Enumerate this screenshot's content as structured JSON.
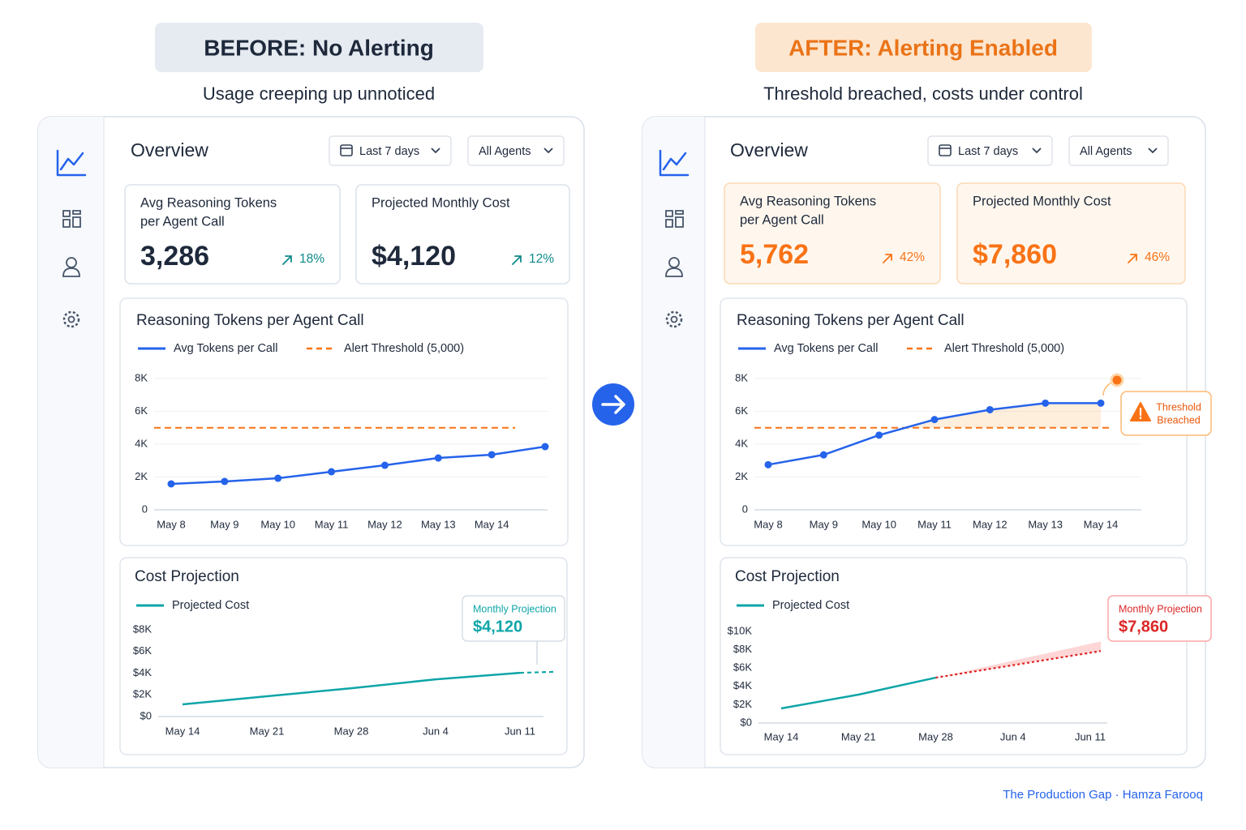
{
  "header": {
    "before": {
      "badge": "BEFORE: No Alerting",
      "subtitle": "Usage creeping up unnoticed"
    },
    "after": {
      "badge": "AFTER: Alerting Enabled",
      "subtitle": "Threshold breached, costs under control"
    }
  },
  "panels": [
    {
      "title": "Overview",
      "filters": [
        "Last 7 days",
        "All Agents"
      ],
      "stats": [
        {
          "label": [
            "Avg Reasoning Tokens",
            "per Agent Call"
          ],
          "value": "3,286",
          "change": "18%"
        },
        {
          "label": [
            "Projected Monthly Cost"
          ],
          "value": "$4,120",
          "change": "12%"
        }
      ]
    },
    {
      "title": "Overview",
      "filters": [
        "Last 7 days",
        "All Agents"
      ],
      "stats": [
        {
          "label": [
            "Avg Reasoning Tokens",
            "per Agent Call"
          ],
          "value": "5,762",
          "change": "42%"
        },
        {
          "label": [
            "Projected Monthly Cost"
          ],
          "value": "$7,860",
          "change": "46%"
        }
      ],
      "alert": [
        "Threshold",
        "Breached"
      ]
    }
  ],
  "chart_data": [
    {
      "type": "line",
      "title": "Reasoning Tokens per Agent Call",
      "categories": [
        "May 8",
        "May 9",
        "May 10",
        "May 11",
        "May 12",
        "May 13",
        "May 14",
        null
      ],
      "series": [
        {
          "name": "Avg Tokens per Call",
          "color": "#2563eb",
          "values": [
            1580,
            1730,
            1925,
            2320,
            2715,
            3160,
            3360,
            3850
          ]
        }
      ],
      "threshold": {
        "name": "Alert Threshold (5,000)",
        "value": 5000,
        "color": "#f97316"
      },
      "ylim": [
        0,
        8000
      ],
      "yticks": [
        0,
        {
          "value": 2000,
          "label": "2K"
        },
        {
          "value": 4000,
          "label": "4K"
        },
        {
          "value": 6000,
          "label": "6K"
        },
        {
          "value": 8000,
          "label": "8K"
        }
      ],
      "grid": true
    },
    {
      "type": "line",
      "title": "Reasoning Tokens per Agent Call",
      "categories": [
        "May 8",
        "May 9",
        "May 10",
        "May 11",
        "May 12",
        "May 13",
        "May 14"
      ],
      "series": [
        {
          "name": "Avg Tokens per Call",
          "color": "#2563eb",
          "values": [
            2750,
            3350,
            4550,
            5500,
            6100,
            6500,
            6500
          ]
        }
      ],
      "threshold": {
        "name": "Alert Threshold (5,000)",
        "value": 5000,
        "color": "#f97316"
      },
      "ylim": [
        0,
        8000
      ],
      "yticks": [
        0,
        {
          "value": 2000,
          "label": "2K"
        },
        {
          "value": 4000,
          "label": "4K"
        },
        {
          "value": 6000,
          "label": "6K"
        },
        {
          "value": 8000,
          "label": "8K"
        }
      ],
      "grid": true
    },
    {
      "type": "line",
      "title": "Cost Projection",
      "categories": [
        "May 14",
        "May 21",
        "May 28",
        "Jun 4",
        "Jun 11"
      ],
      "series": [
        {
          "name": "Projected Cost",
          "color": "#0ea5a8",
          "values": [
            1120,
            1870,
            2610,
            3430,
            4030
          ]
        }
      ],
      "projection": {
        "label": "Monthly Projection",
        "value": 4120,
        "value_label": "$4,120",
        "color": "#0ea5a8"
      },
      "ylim": [
        0,
        8000
      ],
      "yticks": [
        {
          "value": 0,
          "label": "$0"
        },
        {
          "value": 2000,
          "label": "$2K"
        },
        {
          "value": 4000,
          "label": "$4K"
        },
        {
          "value": 6000,
          "label": "$6K"
        },
        {
          "value": 8000,
          "label": "$8K"
        }
      ],
      "grid": false
    },
    {
      "type": "line",
      "title": "Cost Projection",
      "categories": [
        "May 14",
        "May 21",
        "May 28",
        "Jun 4",
        "Jun 11"
      ],
      "series": [
        {
          "name": "Projected Cost",
          "color": "#0ea5a8",
          "values": [
            1590,
            3100,
            4950,
            null,
            null
          ]
        }
      ],
      "projection": {
        "label": "Monthly Projection",
        "value": 7860,
        "value_label": "$7,860",
        "color": "#dc2626"
      },
      "ylim": [
        0,
        10000
      ],
      "yticks": [
        {
          "value": 0,
          "label": "$0"
        },
        {
          "value": 2000,
          "label": "$2K"
        },
        {
          "value": 4000,
          "label": "$4K"
        },
        {
          "value": 6000,
          "label": "$6K"
        },
        {
          "value": 8000,
          "label": "$8K"
        },
        {
          "value": 10000,
          "label": "$10K"
        }
      ],
      "grid": false
    }
  ],
  "footer": "The Production Gap · Hamza Farooq"
}
